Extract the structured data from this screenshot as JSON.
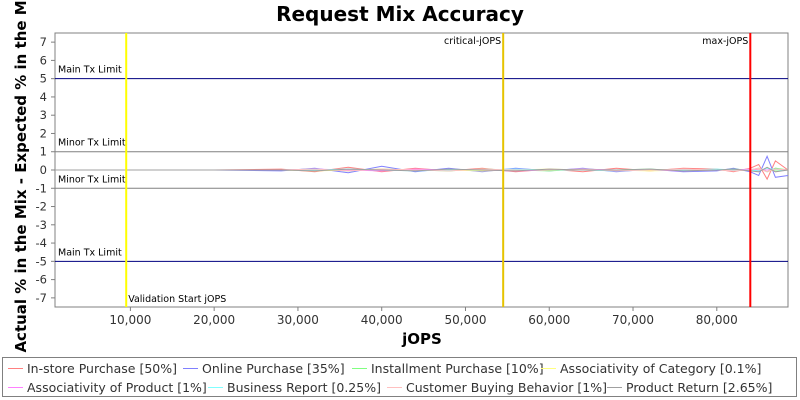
{
  "chart_data": {
    "type": "line",
    "title": "Request Mix Accuracy",
    "xlabel": "jOPS",
    "ylabel": "Actual % in the Mix - Expected % in the Mix",
    "xlim": [
      1000,
      88500
    ],
    "ylim": [
      -7.5,
      7.5
    ],
    "x_ticks": [
      10000,
      20000,
      30000,
      40000,
      50000,
      60000,
      70000,
      80000
    ],
    "x_tick_labels": [
      "10,000",
      "20,000",
      "30,000",
      "40,000",
      "50,000",
      "60,000",
      "70,000",
      "80,000"
    ],
    "y_ticks": [
      -7,
      -6,
      -5,
      -4,
      -3,
      -2,
      -1,
      0,
      1,
      2,
      3,
      4,
      5,
      6,
      7
    ],
    "grid": false,
    "legend_position": "bottom",
    "limit_lines": [
      {
        "label": "Main Tx Limit",
        "y": 5,
        "color": "#000080"
      },
      {
        "label": "Minor Tx Limit",
        "y": 1,
        "color": "#808080"
      },
      {
        "label": "Minor Tx Limit",
        "y": -1,
        "color": "#808080"
      },
      {
        "label": "Main Tx Limit",
        "y": -5,
        "color": "#000080"
      }
    ],
    "markers": [
      {
        "label": "Validation Start jOPS",
        "x": 9500,
        "color": "#ffff00",
        "label_position": "bottom"
      },
      {
        "label": "critical-jOPS",
        "x": 54500,
        "color": "#e6c300",
        "label_position": "top"
      },
      {
        "label": "max-jOPS",
        "x": 84000,
        "color": "#ff0000",
        "label_position": "top"
      }
    ],
    "series": [
      {
        "name": "In-store Purchase [50%]",
        "color": "#ff8080",
        "x": [
          1000,
          10000,
          20000,
          28000,
          32000,
          36000,
          40000,
          44000,
          48000,
          52000,
          56000,
          60000,
          64000,
          68000,
          72000,
          76000,
          80000,
          82000,
          84000,
          85000,
          86000,
          87000,
          88500
        ],
        "values": [
          0,
          0,
          0,
          0.05,
          -0.1,
          0.15,
          -0.1,
          0.1,
          -0.05,
          0.1,
          -0.1,
          0.05,
          -0.1,
          0.1,
          -0.05,
          0.1,
          0.05,
          -0.1,
          0.1,
          0.3,
          -0.5,
          0.5,
          0
        ]
      },
      {
        "name": "Online Purchase [35%]",
        "color": "#8080ff",
        "x": [
          1000,
          10000,
          20000,
          28000,
          32000,
          36000,
          40000,
          44000,
          48000,
          52000,
          56000,
          60000,
          64000,
          68000,
          72000,
          76000,
          80000,
          82000,
          84000,
          85000,
          86000,
          87000,
          88500
        ],
        "values": [
          0,
          0,
          0,
          -0.05,
          0.1,
          -0.15,
          0.2,
          -0.1,
          0.1,
          -0.1,
          0.1,
          -0.05,
          0.1,
          -0.1,
          0.05,
          -0.1,
          -0.05,
          0.1,
          -0.1,
          -0.3,
          0.75,
          -0.4,
          -0.3
        ]
      },
      {
        "name": "Installment Purchase [10%]",
        "color": "#80ff80",
        "x": [
          1000,
          10000,
          20000,
          28000,
          32000,
          36000,
          40000,
          44000,
          48000,
          52000,
          56000,
          60000,
          64000,
          68000,
          72000,
          76000,
          80000,
          82000,
          84000,
          85000,
          86000,
          87000,
          88500
        ],
        "values": [
          0,
          0,
          0,
          0,
          0.05,
          -0.05,
          0.05,
          0,
          -0.05,
          0.05,
          0,
          -0.05,
          0.05,
          0,
          0.05,
          -0.05,
          0,
          0.05,
          0,
          0.1,
          -0.1,
          0.1,
          0
        ]
      },
      {
        "name": "Associativity of Category [0.1%]",
        "color": "#ffff80",
        "x": [
          1000,
          10000,
          20000,
          28000,
          32000,
          36000,
          40000,
          44000,
          48000,
          52000,
          56000,
          60000,
          64000,
          68000,
          72000,
          76000,
          80000,
          82000,
          84000,
          85000,
          86000,
          87000,
          88500
        ],
        "values": [
          0,
          0,
          0,
          0,
          -0.05,
          0,
          0.05,
          0,
          0,
          -0.05,
          0,
          0.05,
          0,
          0,
          -0.05,
          0,
          0,
          0,
          0,
          0.05,
          0,
          -0.05,
          0
        ]
      },
      {
        "name": "Associativity of Product [1%]",
        "color": "#ff80ff",
        "x": [
          1000,
          10000,
          20000,
          28000,
          32000,
          36000,
          40000,
          44000,
          48000,
          52000,
          56000,
          60000,
          64000,
          68000,
          72000,
          76000,
          80000,
          82000,
          84000,
          85000,
          86000,
          87000,
          88500
        ],
        "values": [
          0,
          0,
          0,
          0,
          0.05,
          0,
          -0.05,
          0.05,
          0,
          0,
          -0.05,
          0,
          0.05,
          0,
          0,
          -0.05,
          0,
          0,
          0.05,
          0,
          0,
          0.05,
          0
        ]
      },
      {
        "name": "Business Report [0.25%]",
        "color": "#80ffff",
        "x": [
          1000,
          10000,
          20000,
          28000,
          32000,
          36000,
          40000,
          44000,
          48000,
          52000,
          56000,
          60000,
          64000,
          68000,
          72000,
          76000,
          80000,
          82000,
          84000,
          85000,
          86000,
          87000,
          88500
        ],
        "values": [
          0,
          0,
          0,
          0,
          0,
          0.05,
          0,
          -0.05,
          0,
          0,
          0.05,
          0,
          0,
          -0.05,
          0,
          0,
          0.05,
          0,
          0,
          -0.05,
          0.1,
          0,
          0
        ]
      },
      {
        "name": "Customer Buying Behavior [1%]",
        "color": "#ffc0c0",
        "x": [
          1000,
          10000,
          20000,
          28000,
          32000,
          36000,
          40000,
          44000,
          48000,
          52000,
          56000,
          60000,
          64000,
          68000,
          72000,
          76000,
          80000,
          82000,
          84000,
          85000,
          86000,
          87000,
          88500
        ],
        "values": [
          0,
          0,
          0,
          0,
          0.05,
          -0.05,
          0.05,
          0,
          -0.05,
          0.05,
          0,
          0,
          0.05,
          -0.05,
          0,
          0.05,
          0,
          -0.05,
          0,
          0.1,
          -0.1,
          0.05,
          0
        ]
      },
      {
        "name": "Product Return [2.65%]",
        "color": "#a0a0a0",
        "x": [
          1000,
          10000,
          20000,
          28000,
          32000,
          36000,
          40000,
          44000,
          48000,
          52000,
          56000,
          60000,
          64000,
          68000,
          72000,
          76000,
          80000,
          82000,
          84000,
          85000,
          86000,
          87000,
          88500
        ],
        "values": [
          0,
          0,
          0,
          0,
          -0.05,
          0.05,
          0,
          -0.05,
          0.05,
          0,
          -0.05,
          0.05,
          0,
          0,
          0.05,
          -0.05,
          0,
          0.05,
          -0.05,
          -0.1,
          0.15,
          -0.1,
          0
        ]
      }
    ]
  }
}
